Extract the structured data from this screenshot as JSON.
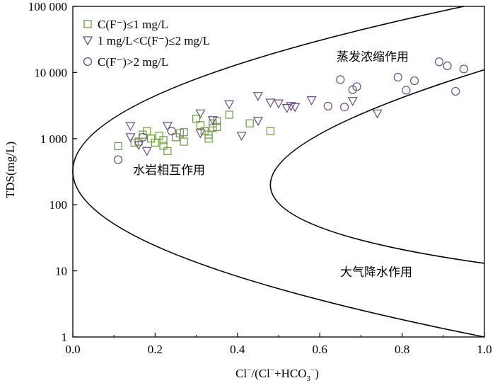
{
  "chart_data": {
    "type": "scatter",
    "xlabel": "Cl⁻/(Cl⁻+HCO₃⁻)",
    "ylabel": "TDS(mg/L)",
    "xlim": [
      0,
      1
    ],
    "ylim": [
      1,
      100000
    ],
    "y_scale": "log",
    "grid": false,
    "legend_position": "top-left",
    "x_ticks": [
      "0.0",
      "0.2",
      "0.4",
      "0.6",
      "0.8",
      "1.0"
    ],
    "y_ticks": [
      "1",
      "10",
      "100",
      "1 000",
      "10 000",
      "100 000"
    ],
    "colors": {
      "green": "#6b9a3c",
      "purple": "#6a4a8a",
      "axis": "#000000"
    },
    "region_labels": {
      "evaporation": "蒸发浓缩作用",
      "rock_weathering": "水岩相互作用",
      "precipitation": "大气降水作用"
    },
    "series": [
      {
        "name": "C(F⁻)≤1 mg/L",
        "marker": "square",
        "color": "#6b9a3c",
        "points": [
          [
            0.11,
            770
          ],
          [
            0.15,
            870
          ],
          [
            0.16,
            900
          ],
          [
            0.17,
            1150
          ],
          [
            0.18,
            1300
          ],
          [
            0.19,
            1000
          ],
          [
            0.2,
            870
          ],
          [
            0.21,
            1100
          ],
          [
            0.22,
            950
          ],
          [
            0.22,
            780
          ],
          [
            0.23,
            650
          ],
          [
            0.25,
            1050
          ],
          [
            0.26,
            1200
          ],
          [
            0.27,
            900
          ],
          [
            0.27,
            1250
          ],
          [
            0.3,
            2000
          ],
          [
            0.31,
            1600
          ],
          [
            0.32,
            1300
          ],
          [
            0.33,
            1000
          ],
          [
            0.33,
            1150
          ],
          [
            0.34,
            1450
          ],
          [
            0.34,
            1700
          ],
          [
            0.35,
            1850
          ],
          [
            0.35,
            1500
          ],
          [
            0.38,
            2300
          ],
          [
            0.43,
            1700
          ],
          [
            0.48,
            1300
          ]
        ]
      },
      {
        "name": "1 mg/L<C(F⁻)≤2 mg/L",
        "marker": "triangle-down",
        "color": "#6a4a8a",
        "points": [
          [
            0.14,
            1550
          ],
          [
            0.14,
            1050
          ],
          [
            0.16,
            800
          ],
          [
            0.18,
            650
          ],
          [
            0.23,
            1550
          ],
          [
            0.31,
            2400
          ],
          [
            0.31,
            1200
          ],
          [
            0.34,
            1900
          ],
          [
            0.38,
            3300
          ],
          [
            0.41,
            1100
          ],
          [
            0.45,
            4400
          ],
          [
            0.45,
            1850
          ],
          [
            0.48,
            3500
          ],
          [
            0.5,
            3400
          ],
          [
            0.52,
            2900
          ],
          [
            0.53,
            3100
          ],
          [
            0.54,
            3000
          ],
          [
            0.58,
            3800
          ],
          [
            0.68,
            3700
          ],
          [
            0.74,
            2400
          ]
        ]
      },
      {
        "name": "C(F⁻)>2 mg/L",
        "marker": "circle",
        "color": "#6a4a8a",
        "points": [
          [
            0.11,
            480
          ],
          [
            0.17,
            1050
          ],
          [
            0.24,
            1300
          ],
          [
            0.62,
            3100
          ],
          [
            0.65,
            7800
          ],
          [
            0.66,
            3000
          ],
          [
            0.68,
            5500
          ],
          [
            0.69,
            6100
          ],
          [
            0.79,
            8500
          ],
          [
            0.81,
            5400
          ],
          [
            0.83,
            7500
          ],
          [
            0.89,
            14500
          ],
          [
            0.91,
            12600
          ],
          [
            0.93,
            5200
          ],
          [
            0.95,
            11300
          ]
        ]
      }
    ],
    "boundary_curves": [
      {
        "name": "",
        "points": [
          [
            0.95,
            100000
          ],
          [
            0.0,
            300
          ],
          [
            1.0,
            1
          ]
        ]
      },
      {
        "name": "",
        "points": [
          [
            1.0,
            11000
          ],
          [
            0.48,
            200
          ],
          [
            1.0,
            13
          ]
        ]
      }
    ]
  }
}
